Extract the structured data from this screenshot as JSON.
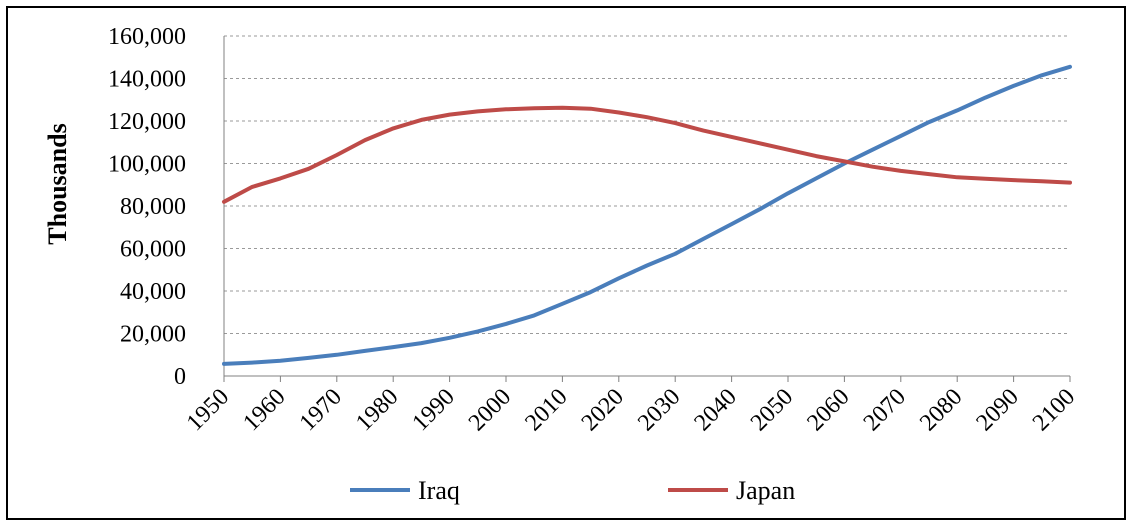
{
  "chart_data": {
    "type": "line",
    "title": "",
    "xlabel": "",
    "ylabel": "Thousands",
    "xlim": [
      1950,
      2100
    ],
    "ylim": [
      0,
      160000
    ],
    "xticks": [
      1950,
      1960,
      1970,
      1980,
      1990,
      2000,
      2010,
      2020,
      2030,
      2040,
      2050,
      2060,
      2070,
      2080,
      2090,
      2100
    ],
    "yticks": [
      0,
      20000,
      40000,
      60000,
      80000,
      100000,
      120000,
      140000,
      160000
    ],
    "ytick_labels": [
      "0",
      "20,000",
      "40,000",
      "60,000",
      "80,000",
      "100,000",
      "120,000",
      "140,000",
      "160,000"
    ],
    "grid": "horizontal-dashed",
    "legend_position": "bottom",
    "x": [
      1950,
      1955,
      1960,
      1965,
      1970,
      1975,
      1980,
      1985,
      1990,
      1995,
      2000,
      2005,
      2010,
      2015,
      2020,
      2025,
      2030,
      2035,
      2040,
      2045,
      2050,
      2055,
      2060,
      2065,
      2070,
      2075,
      2080,
      2085,
      2090,
      2095,
      2100
    ],
    "series": [
      {
        "name": "Iraq",
        "color": "#4a7ebb",
        "values": [
          5700,
          6300,
          7200,
          8500,
          10000,
          11800,
          13600,
          15500,
          18000,
          21000,
          24500,
          28500,
          34000,
          39500,
          46000,
          52000,
          57500,
          64500,
          71500,
          78500,
          86000,
          93000,
          100000,
          106500,
          113000,
          119500,
          125000,
          131000,
          136500,
          141500,
          145500
        ]
      },
      {
        "name": "Japan",
        "color": "#be4b48",
        "values": [
          82000,
          89000,
          93000,
          97500,
          104000,
          111000,
          116500,
          120500,
          123000,
          124500,
          125500,
          126000,
          126200,
          125800,
          124000,
          121800,
          119000,
          115500,
          112500,
          109500,
          106500,
          103500,
          101000,
          98500,
          96500,
          95000,
          93500,
          92800,
          92200,
          91600,
          91000
        ]
      }
    ]
  }
}
